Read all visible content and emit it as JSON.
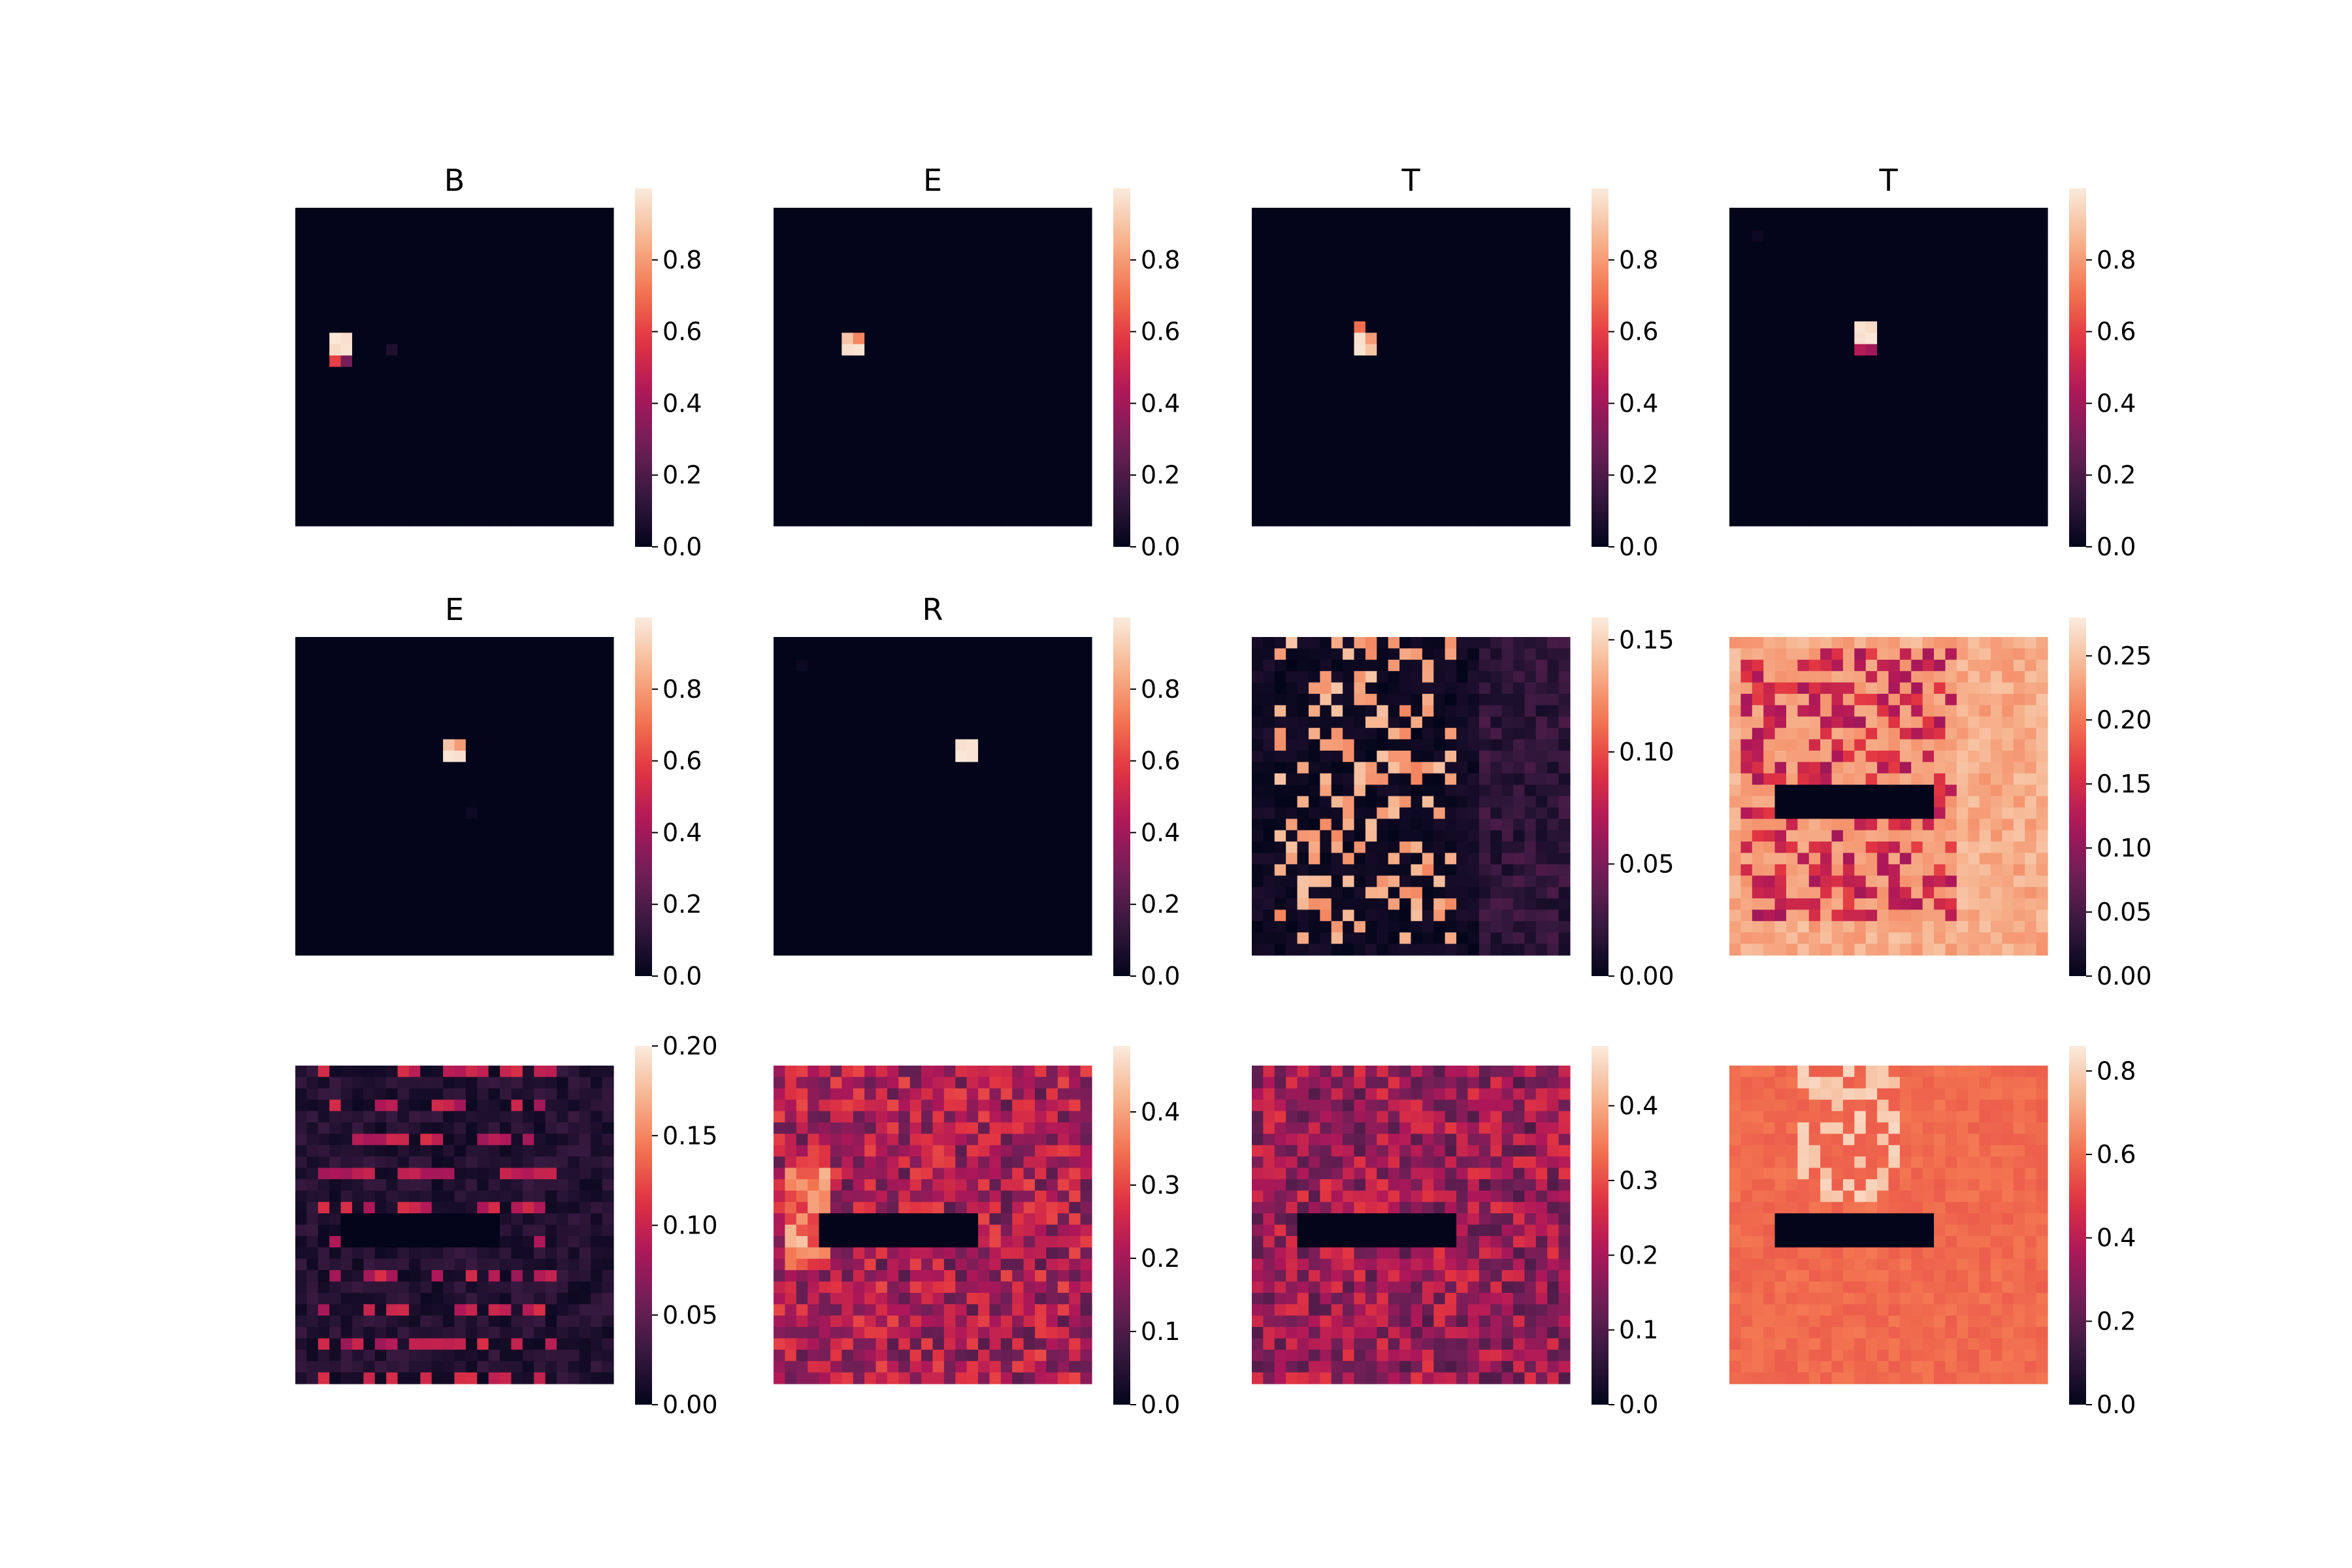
{
  "chart_data": [
    {
      "type": "heatmap",
      "title": "B",
      "grid_size": 28,
      "colorbar_ticks": [
        "0.0",
        "0.2",
        "0.4",
        "0.6",
        "0.8"
      ],
      "vmin": 0,
      "vmax": 1.0,
      "max_cell_value": 0.99,
      "hotspots": [
        {
          "row": 11,
          "col": 3,
          "value": 0.99
        },
        {
          "row": 11,
          "col": 4,
          "value": 0.97
        },
        {
          "row": 12,
          "col": 3,
          "value": 0.96
        },
        {
          "row": 12,
          "col": 4,
          "value": 0.98
        },
        {
          "row": 13,
          "col": 3,
          "value": 0.6
        },
        {
          "row": 13,
          "col": 4,
          "value": 0.3
        },
        {
          "row": 12,
          "col": 8,
          "value": 0.08
        }
      ]
    },
    {
      "type": "heatmap",
      "title": "E",
      "grid_size": 28,
      "colorbar_ticks": [
        "0.0",
        "0.2",
        "0.4",
        "0.6",
        "0.8"
      ],
      "vmin": 0,
      "vmax": 1.0,
      "max_cell_value": 0.99,
      "hotspots": [
        {
          "row": 11,
          "col": 6,
          "value": 0.9
        },
        {
          "row": 11,
          "col": 7,
          "value": 0.75
        },
        {
          "row": 12,
          "col": 6,
          "value": 0.97
        },
        {
          "row": 12,
          "col": 7,
          "value": 0.98
        }
      ]
    },
    {
      "type": "heatmap",
      "title": "T",
      "grid_size": 28,
      "colorbar_ticks": [
        "0.0",
        "0.2",
        "0.4",
        "0.6",
        "0.8"
      ],
      "vmin": 0,
      "vmax": 1.0,
      "max_cell_value": 0.99,
      "hotspots": [
        {
          "row": 10,
          "col": 9,
          "value": 0.7
        },
        {
          "row": 11,
          "col": 9,
          "value": 0.97
        },
        {
          "row": 11,
          "col": 10,
          "value": 0.8
        },
        {
          "row": 12,
          "col": 9,
          "value": 0.98
        },
        {
          "row": 12,
          "col": 10,
          "value": 0.9
        }
      ]
    },
    {
      "type": "heatmap",
      "title": "T",
      "grid_size": 28,
      "colorbar_ticks": [
        "0.0",
        "0.2",
        "0.4",
        "0.6",
        "0.8"
      ],
      "vmin": 0,
      "vmax": 1.0,
      "max_cell_value": 0.99,
      "hotspots": [
        {
          "row": 10,
          "col": 11,
          "value": 0.98
        },
        {
          "row": 10,
          "col": 12,
          "value": 0.96
        },
        {
          "row": 11,
          "col": 11,
          "value": 0.97
        },
        {
          "row": 11,
          "col": 12,
          "value": 0.99
        },
        {
          "row": 12,
          "col": 11,
          "value": 0.45
        },
        {
          "row": 12,
          "col": 12,
          "value": 0.4
        },
        {
          "row": 2,
          "col": 2,
          "value": 0.03
        }
      ]
    },
    {
      "type": "heatmap",
      "title": "E",
      "grid_size": 28,
      "colorbar_ticks": [
        "0.0",
        "0.2",
        "0.4",
        "0.6",
        "0.8"
      ],
      "vmin": 0,
      "vmax": 1.0,
      "max_cell_value": 0.99,
      "hotspots": [
        {
          "row": 9,
          "col": 13,
          "value": 0.9
        },
        {
          "row": 9,
          "col": 14,
          "value": 0.8
        },
        {
          "row": 10,
          "col": 13,
          "value": 0.98
        },
        {
          "row": 10,
          "col": 14,
          "value": 0.97
        },
        {
          "row": 15,
          "col": 15,
          "value": 0.03
        }
      ]
    },
    {
      "type": "heatmap",
      "title": "R",
      "grid_size": 28,
      "colorbar_ticks": [
        "0.0",
        "0.2",
        "0.4",
        "0.6",
        "0.8"
      ],
      "vmin": 0,
      "vmax": 1.0,
      "max_cell_value": 0.99,
      "hotspots": [
        {
          "row": 9,
          "col": 16,
          "value": 0.97
        },
        {
          "row": 9,
          "col": 17,
          "value": 0.98
        },
        {
          "row": 10,
          "col": 16,
          "value": 0.99
        },
        {
          "row": 10,
          "col": 17,
          "value": 0.98
        },
        {
          "row": 2,
          "col": 2,
          "value": 0.03
        }
      ]
    },
    {
      "type": "heatmap",
      "title": "",
      "grid_size": 28,
      "colorbar_ticks": [
        "0.00",
        "0.05",
        "0.10",
        "0.15"
      ],
      "vmin": 0,
      "vmax": 0.16,
      "max_cell_value": 0.16
    },
    {
      "type": "heatmap",
      "title": "",
      "grid_size": 28,
      "colorbar_ticks": [
        "0.00",
        "0.05",
        "0.10",
        "0.15",
        "0.20",
        "0.25"
      ],
      "vmin": 0,
      "vmax": 0.28,
      "max_cell_value": 0.28
    },
    {
      "type": "heatmap",
      "title": "",
      "grid_size": 28,
      "colorbar_ticks": [
        "0.00",
        "0.05",
        "0.10",
        "0.15",
        "0.20"
      ],
      "vmin": 0,
      "vmax": 0.2,
      "max_cell_value": 0.2
    },
    {
      "type": "heatmap",
      "title": "",
      "grid_size": 28,
      "colorbar_ticks": [
        "0.0",
        "0.1",
        "0.2",
        "0.3",
        "0.4"
      ],
      "vmin": 0,
      "vmax": 0.49,
      "max_cell_value": 0.49
    },
    {
      "type": "heatmap",
      "title": "",
      "grid_size": 28,
      "colorbar_ticks": [
        "0.0",
        "0.1",
        "0.2",
        "0.3",
        "0.4"
      ],
      "vmin": 0,
      "vmax": 0.48,
      "max_cell_value": 0.48
    },
    {
      "type": "heatmap",
      "title": "",
      "grid_size": 28,
      "colorbar_ticks": [
        "0.0",
        "0.2",
        "0.4",
        "0.6",
        "0.8"
      ],
      "vmin": 0,
      "vmax": 0.86,
      "max_cell_value": 0.86
    }
  ],
  "colormap": {
    "name": "rocket",
    "stops": [
      "#03051a",
      "#36193e",
      "#701f57",
      "#ad1759",
      "#e13342",
      "#f37651",
      "#f6b48f",
      "#faebdd"
    ]
  }
}
